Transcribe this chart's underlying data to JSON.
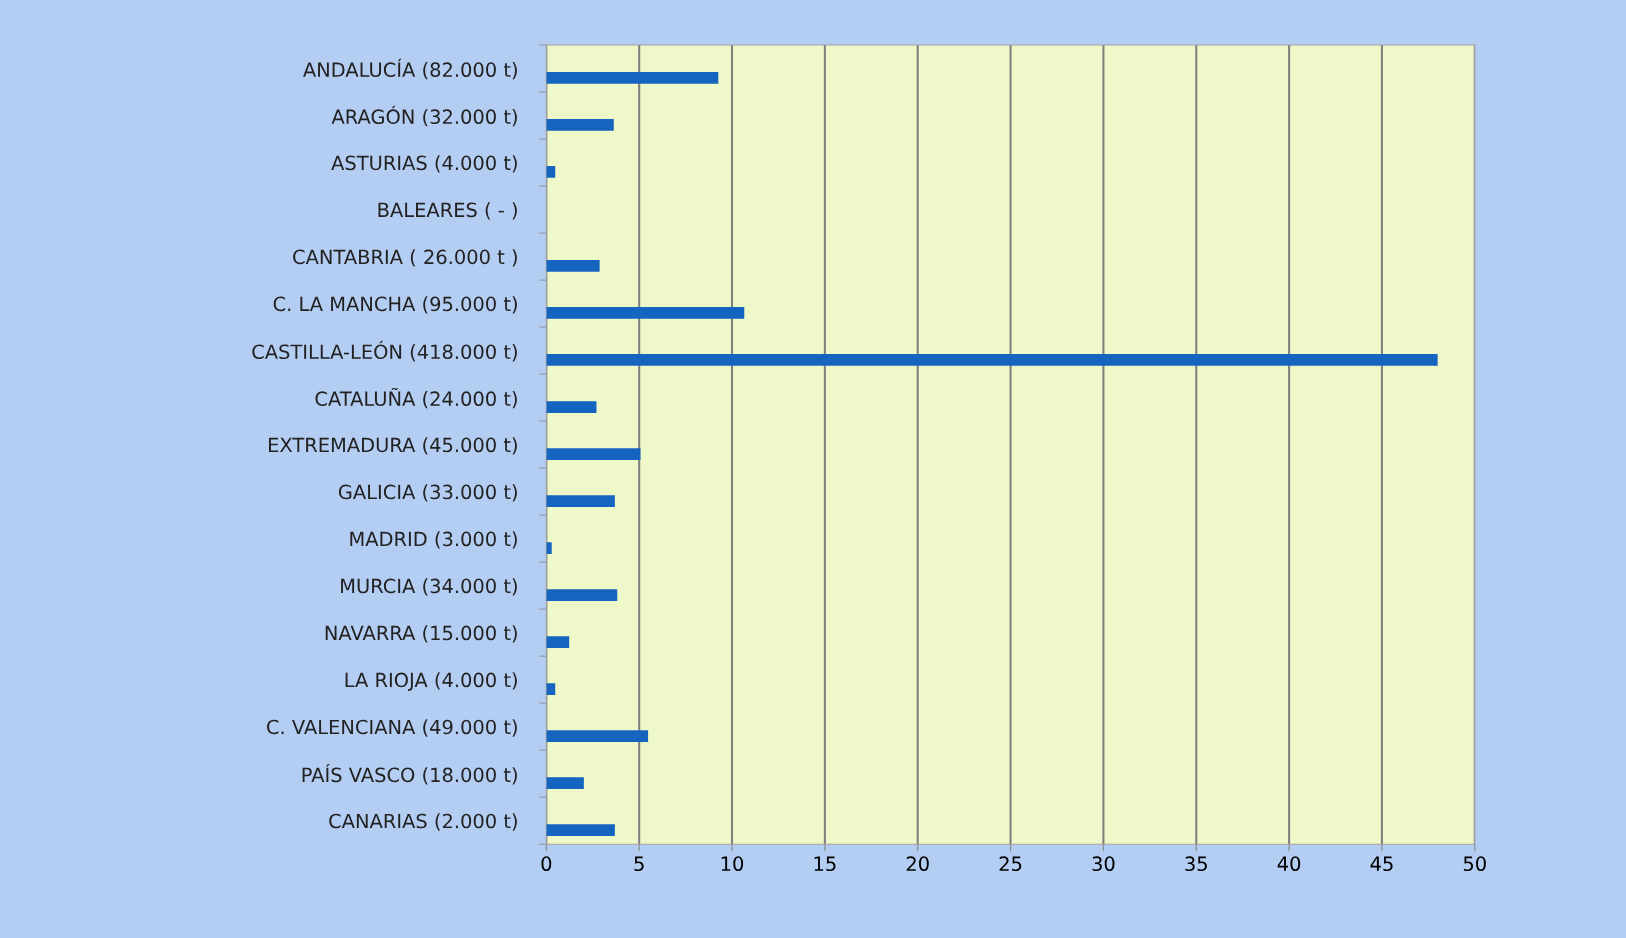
{
  "chart_data": {
    "type": "bar",
    "orientation": "horizontal",
    "categories": [
      "ANDALUCÍA (82.000 t)",
      "ARAGÓN (32.000 t)",
      "ASTURIAS (4.000 t)",
      "BALEARES ( - )",
      "CANTABRIA ( 26.000 t )",
      "C. LA MANCHA (95.000 t)",
      "CASTILLA-LEÓN (418.000 t)",
      "CATALUÑA (24.000 t)",
      "EXTREMADURA (45.000 t)",
      "GALICIA (33.000 t)",
      "MADRID (3.000 t)",
      "MURCIA (34.000 t)",
      "NAVARRA (15.000 t)",
      "LA RIOJA (4.000 t)",
      "C. VALENCIANA (49.000 t)",
      "PAÍS VASCO (18.000 t)",
      "CANARIAS (2.000 t)"
    ],
    "values": [
      9.26,
      3.63,
      0.48,
      0,
      2.87,
      10.66,
      48.0,
      2.7,
      5.07,
      3.69,
      0.29,
      3.82,
      1.23,
      0.48,
      5.48,
      2.02,
      3.69
    ],
    "color": "#1565c0",
    "xlim": [
      0,
      50
    ],
    "xticks": [
      0,
      5,
      10,
      15,
      20,
      25,
      30,
      35,
      40,
      45,
      50
    ],
    "grid": "x"
  }
}
